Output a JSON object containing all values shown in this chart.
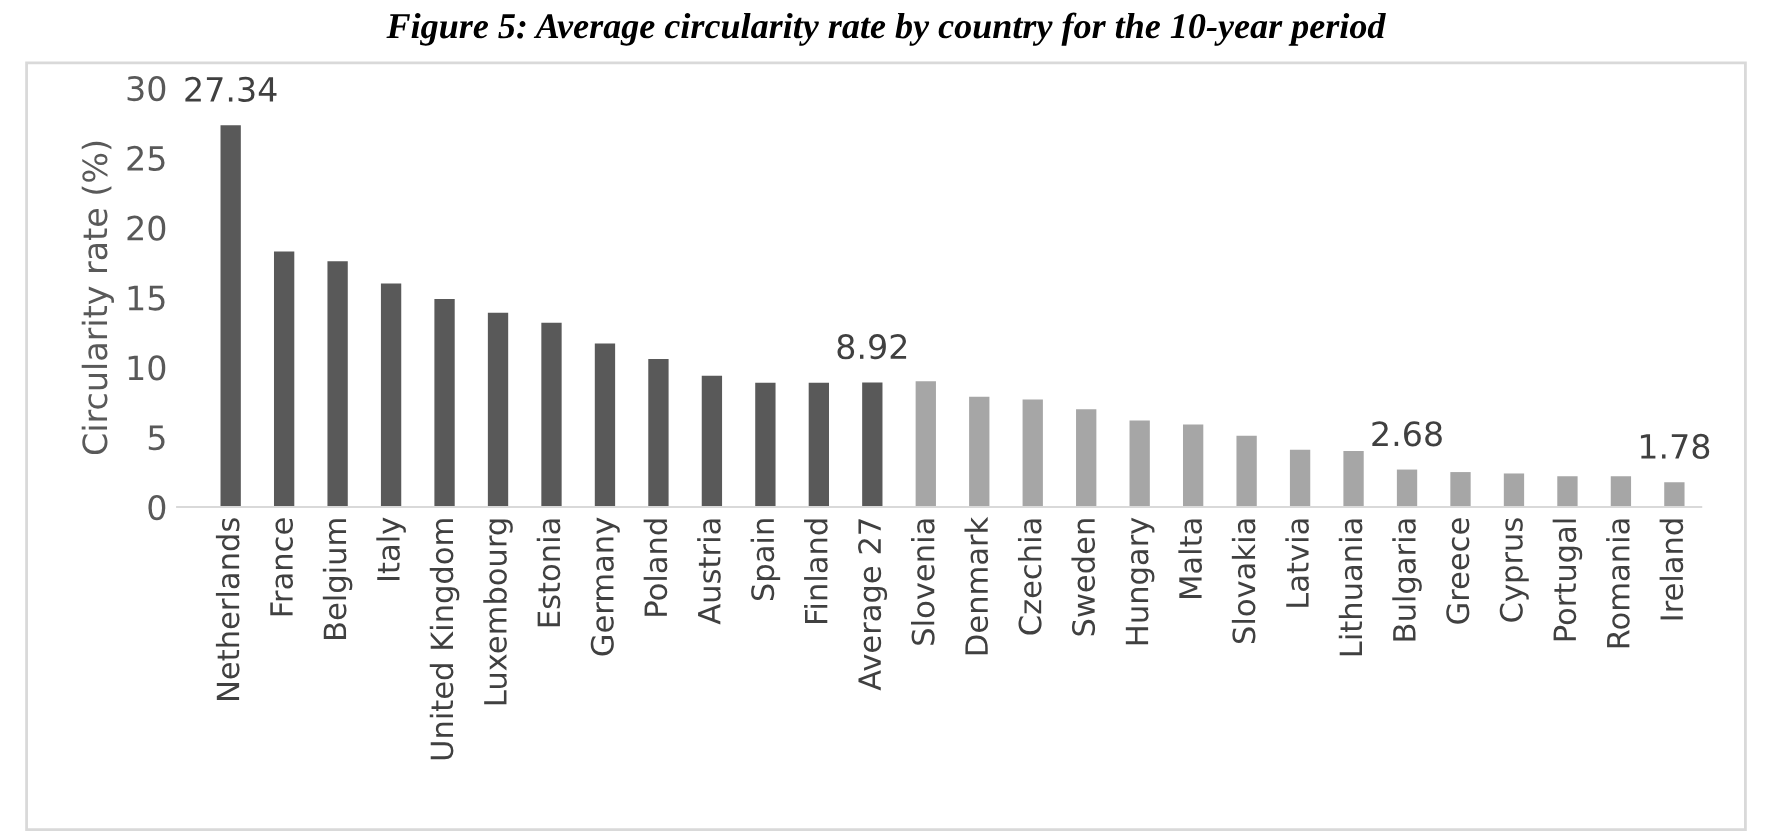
{
  "chart_data": {
    "type": "bar",
    "title": "Figure 5: Average circularity rate by country for the 10-year period",
    "ylabel": "Circularity rate (%)",
    "categories": [
      "Netherlands",
      "France",
      "Belgium",
      "Italy",
      "United Kingdom",
      "Luxembourg",
      "Estonia",
      "Germany",
      "Poland",
      "Austria",
      "Spain",
      "Finland",
      "Average 27",
      "Slovenia",
      "Denmark",
      "Czechia",
      "Sweden",
      "Hungary",
      "Malta",
      "Slovakia",
      "Latvia",
      "Lithuania",
      "Bulgaria",
      "Greece",
      "Cyprus",
      "Portugal",
      "Romania",
      "Ireland"
    ],
    "values": [
      27.34,
      18.3,
      17.6,
      16.0,
      14.9,
      13.9,
      13.2,
      11.7,
      10.6,
      9.4,
      8.9,
      8.9,
      8.92,
      9.0,
      7.9,
      7.7,
      7.0,
      6.2,
      5.9,
      5.1,
      4.1,
      4.0,
      2.68,
      2.5,
      2.4,
      2.2,
      2.2,
      1.78
    ],
    "value_labels": [
      "27.34",
      null,
      null,
      null,
      null,
      null,
      null,
      null,
      null,
      null,
      null,
      null,
      "8.92",
      null,
      null,
      null,
      null,
      null,
      null,
      null,
      null,
      null,
      "2.68",
      null,
      null,
      null,
      null,
      "1.78"
    ],
    "colors": [
      "#595959",
      "#595959",
      "#595959",
      "#595959",
      "#595959",
      "#595959",
      "#595959",
      "#595959",
      "#595959",
      "#595959",
      "#595959",
      "#595959",
      "#595959",
      "#a6a6a6",
      "#a6a6a6",
      "#a6a6a6",
      "#a6a6a6",
      "#a6a6a6",
      "#a6a6a6",
      "#a6a6a6",
      "#a6a6a6",
      "#a6a6a6",
      "#a6a6a6",
      "#a6a6a6",
      "#a6a6a6",
      "#a6a6a6",
      "#a6a6a6",
      "#a6a6a6"
    ],
    "ylim": [
      0,
      30
    ],
    "yticks": [
      0,
      5,
      10,
      15,
      20,
      25,
      30
    ],
    "grid": false,
    "legend": false
  }
}
